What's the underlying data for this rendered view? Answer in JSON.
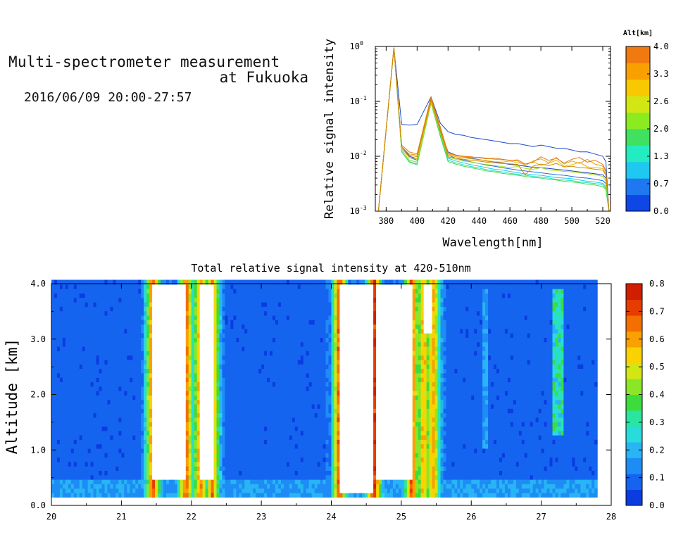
{
  "header": {
    "title_line1": "Multi-spectrometer measurement",
    "title_line2": "at Fukuoka",
    "timestamp": "2016/06/09 20:00-27:57"
  },
  "chart_data": [
    {
      "type": "line",
      "xlabel": "Wavelength[nm]",
      "ylabel": "Relative signal intensity",
      "xlim": [
        373,
        525
      ],
      "ylim": [
        0.001,
        1
      ],
      "yscale": "log",
      "x_ticks": [
        "380",
        "400",
        "420",
        "440",
        "460",
        "480",
        "500",
        "520"
      ],
      "y_ticks": [
        {
          "base": "10",
          "exp": "-3"
        },
        {
          "base": "10",
          "exp": "-2"
        },
        {
          "base": "10",
          "exp": "-1"
        },
        {
          "base": "10",
          "exp": "0"
        }
      ],
      "colorbar": {
        "label": "Alt[km]",
        "ticks": [
          "0.0",
          "0.7",
          "1.3",
          "2.0",
          "2.6",
          "3.3",
          "4.0"
        ],
        "colors": [
          "#0f46e6",
          "#1f78f0",
          "#1ec8f0",
          "#22ecc0",
          "#40e060",
          "#8cea20",
          "#d2e614",
          "#f8c800",
          "#f8a000",
          "#f07a10"
        ]
      },
      "x": [
        375,
        385,
        390,
        395,
        400,
        409,
        415,
        420,
        425,
        430,
        435,
        440,
        445,
        450,
        455,
        460,
        465,
        470,
        475,
        480,
        485,
        490,
        495,
        500,
        505,
        510,
        515,
        520,
        522,
        524
      ],
      "series": [
        {
          "color": "#1a4bd2",
          "values": [
            0.001,
            0.95,
            0.038,
            0.037,
            0.038,
            0.12,
            0.04,
            0.028,
            0.025,
            0.024,
            0.022,
            0.021,
            0.02,
            0.019,
            0.018,
            0.017,
            0.017,
            0.016,
            0.015,
            0.016,
            0.015,
            0.014,
            0.014,
            0.013,
            0.012,
            0.012,
            0.011,
            0.01,
            0.008,
            0.001
          ]
        },
        {
          "color": "#1e3fb4",
          "values": [
            0.001,
            0.95,
            0.015,
            0.01,
            0.009,
            0.12,
            0.03,
            0.012,
            0.0105,
            0.0098,
            0.0092,
            0.0087,
            0.0082,
            0.0079,
            0.0075,
            0.0071,
            0.0069,
            0.0066,
            0.0063,
            0.0062,
            0.006,
            0.0058,
            0.0056,
            0.0054,
            0.0052,
            0.005,
            0.0048,
            0.0046,
            0.004,
            0.001
          ]
        },
        {
          "color": "#1f6ee6",
          "values": [
            0.001,
            0.95,
            0.014,
            0.0095,
            0.0085,
            0.11,
            0.027,
            0.0105,
            0.0092,
            0.0085,
            0.0079,
            0.0074,
            0.0069,
            0.0066,
            0.0062,
            0.0059,
            0.0056,
            0.0054,
            0.0052,
            0.005,
            0.0048,
            0.0046,
            0.0045,
            0.0043,
            0.0041,
            0.004,
            0.0038,
            0.0036,
            0.0032,
            0.001
          ]
        },
        {
          "color": "#1ec8f0",
          "values": [
            0.001,
            0.95,
            0.013,
            0.0085,
            0.0078,
            0.1,
            0.025,
            0.0092,
            0.0082,
            0.0076,
            0.007,
            0.0066,
            0.0062,
            0.0058,
            0.0056,
            0.0053,
            0.005,
            0.0048,
            0.0046,
            0.0045,
            0.0043,
            0.0041,
            0.004,
            0.0039,
            0.0037,
            0.0035,
            0.0034,
            0.0032,
            0.0028,
            0.001
          ]
        },
        {
          "color": "#22e0b0",
          "values": [
            0.001,
            0.95,
            0.012,
            0.008,
            0.0072,
            0.095,
            0.024,
            0.0085,
            0.0076,
            0.007,
            0.0065,
            0.0061,
            0.0057,
            0.0054,
            0.0052,
            0.0049,
            0.0047,
            0.0045,
            0.0043,
            0.0042,
            0.004,
            0.0038,
            0.0037,
            0.0036,
            0.0034,
            0.0033,
            0.0032,
            0.003,
            0.0026,
            0.001
          ]
        },
        {
          "color": "#40dc50",
          "values": [
            0.001,
            0.95,
            0.012,
            0.0078,
            0.007,
            0.092,
            0.023,
            0.008,
            0.0072,
            0.0066,
            0.0062,
            0.0058,
            0.0054,
            0.0052,
            0.0049,
            0.0047,
            0.0045,
            0.0043,
            0.0041,
            0.004,
            0.0038,
            0.0037,
            0.0035,
            0.0034,
            0.0033,
            0.0031,
            0.003,
            0.0028,
            0.0025,
            0.001
          ]
        },
        {
          "color": "#a8e020",
          "values": [
            0.001,
            0.95,
            0.013,
            0.0085,
            0.0078,
            0.095,
            0.026,
            0.0095,
            0.0088,
            0.0082,
            0.0078,
            0.0074,
            0.0071,
            0.0068,
            0.0065,
            0.0063,
            0.0065,
            0.006,
            0.0058,
            0.0062,
            0.0056,
            0.0055,
            0.0053,
            0.0052,
            0.005,
            0.0048,
            0.0046,
            0.0043,
            0.0035,
            0.001
          ]
        },
        {
          "color": "#f0b400",
          "values": [
            0.001,
            0.95,
            0.014,
            0.0095,
            0.009,
            0.1,
            0.03,
            0.0105,
            0.0098,
            0.0094,
            0.009,
            0.0086,
            0.0083,
            0.008,
            0.0078,
            0.0082,
            0.0076,
            0.0072,
            0.008,
            0.0068,
            0.0074,
            0.0085,
            0.0066,
            0.007,
            0.0078,
            0.0064,
            0.0062,
            0.006,
            0.0048,
            0.001
          ]
        },
        {
          "color": "#e8a010",
          "values": [
            0.001,
            0.95,
            0.015,
            0.011,
            0.0105,
            0.11,
            0.032,
            0.011,
            0.0102,
            0.0098,
            0.0095,
            0.0096,
            0.0092,
            0.0088,
            0.0086,
            0.0085,
            0.0082,
            0.0068,
            0.0082,
            0.009,
            0.0076,
            0.0095,
            0.0072,
            0.0082,
            0.0074,
            0.0088,
            0.0072,
            0.0066,
            0.0052,
            0.001
          ]
        },
        {
          "color": "#e07a10",
          "values": [
            0.001,
            0.95,
            0.016,
            0.012,
            0.011,
            0.12,
            0.034,
            0.0115,
            0.0105,
            0.01,
            0.0098,
            0.0094,
            0.009,
            0.0092,
            0.0088,
            0.0084,
            0.0086,
            0.0072,
            0.0078,
            0.0098,
            0.0084,
            0.0092,
            0.0075,
            0.0088,
            0.0095,
            0.0078,
            0.0085,
            0.0071,
            0.0055,
            0.001
          ]
        },
        {
          "color": "#d08a00",
          "values": [
            0.001,
            0.95,
            0.015,
            0.0105,
            0.0098,
            0.105,
            0.03,
            0.0098,
            0.0092,
            0.0088,
            0.0084,
            0.0082,
            0.0078,
            0.0076,
            0.0074,
            0.0073,
            0.0071,
            0.0046,
            0.0066,
            0.0072,
            0.0068,
            0.0074,
            0.0064,
            0.0066,
            0.0062,
            0.0061,
            0.0058,
            0.0056,
            0.0045,
            0.001
          ]
        }
      ]
    },
    {
      "type": "heatmap",
      "title": "Total relative signal intensity at 420-510nm",
      "ylabel": "Altitude [km]",
      "xlim": [
        20,
        28
      ],
      "ylim": [
        0,
        4
      ],
      "x_ticks": [
        "20",
        "21",
        "22",
        "23",
        "24",
        "25",
        "26",
        "27",
        "28"
      ],
      "y_ticks": [
        "0.0",
        "1.0",
        "2.0",
        "3.0",
        "4.0"
      ],
      "data_x_range": [
        20.0,
        27.8
      ],
      "data_y_range": [
        0.15,
        4.0
      ],
      "colorbar": {
        "ticks": [
          "0.0",
          "0.1",
          "0.2",
          "0.3",
          "0.4",
          "0.5",
          "0.6",
          "0.7",
          "0.8"
        ],
        "colors": [
          "#0a3ce0",
          "#1464f0",
          "#1e8cf5",
          "#28b4f5",
          "#28dcdc",
          "#28e6a0",
          "#3cdc3c",
          "#8ce628",
          "#d2e614",
          "#fad200",
          "#faa000",
          "#f56e00",
          "#e63c00",
          "#d21e00"
        ]
      },
      "background_value": 0.08,
      "low_altitude_band": {
        "altitude_max": 0.45,
        "value": 0.17
      },
      "features": [
        {
          "x0": 21.38,
          "x1": 21.92,
          "saturated_x": [
            21.45,
            21.92
          ],
          "saturated_alt": [
            0.45,
            4.0
          ],
          "edge_value": 0.6
        },
        {
          "x0": 22.1,
          "x1": 22.35,
          "saturated_x": [
            22.13,
            22.3
          ],
          "saturated_alt": [
            0.45,
            4.0
          ],
          "edge_value": 0.55
        },
        {
          "x0": 24.05,
          "x1": 24.62,
          "saturated_x": [
            24.12,
            24.6
          ],
          "saturated_alt": [
            0.25,
            4.0
          ],
          "edge_value": 0.62
        },
        {
          "x0": 24.62,
          "x1": 25.15,
          "saturated_x": [
            24.62,
            25.15
          ],
          "saturated_alt": [
            0.45,
            4.0
          ],
          "edge_value": 0.6
        },
        {
          "x0": 25.25,
          "x1": 25.5,
          "saturated_x": [
            25.32,
            25.45
          ],
          "saturated_alt": [
            3.1,
            4.0
          ],
          "edge_value": 0.5
        },
        {
          "x0": 27.15,
          "x1": 27.3,
          "plume_value": 0.35,
          "plume_alt": [
            1.3,
            3.9
          ]
        },
        {
          "x0": 26.15,
          "x1": 26.25,
          "plume_value": 0.2,
          "plume_alt": [
            1.0,
            3.9
          ]
        }
      ]
    }
  ]
}
